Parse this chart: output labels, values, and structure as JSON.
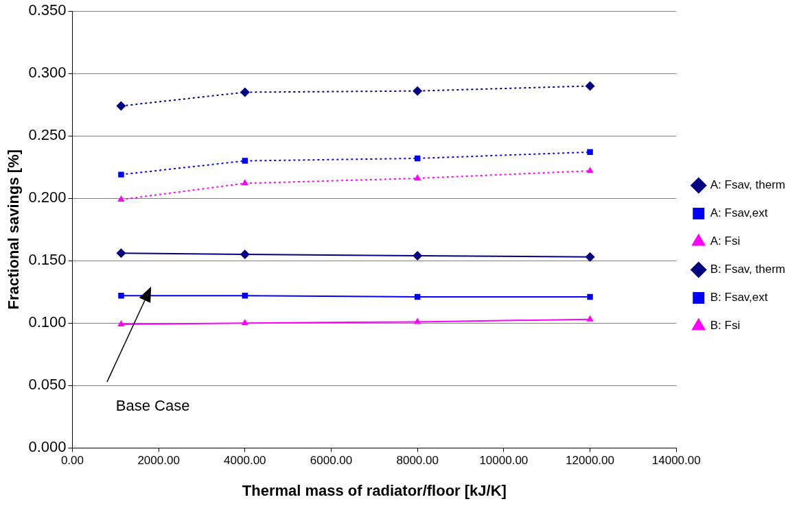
{
  "chart_data": {
    "type": "line",
    "xlabel": "Thermal mass of radiator/floor [kJ/K]",
    "ylabel": "Fractional savings [%]",
    "x": [
      1130,
      4000,
      8000,
      12000
    ],
    "series": [
      {
        "name": "A: Fsav, therm",
        "color": "#000080",
        "values": [
          0.156,
          0.155,
          0.154,
          0.153
        ],
        "marker": "diamond",
        "line_style": "solid"
      },
      {
        "name": "A: Fsav,ext",
        "color": "#0000ff",
        "values": [
          0.122,
          0.122,
          0.121,
          0.121
        ],
        "marker": "square",
        "line_style": "solid"
      },
      {
        "name": "A: Fsi",
        "color": "#ff00ff",
        "values": [
          0.099,
          0.1,
          0.101,
          0.103
        ],
        "marker": "triangle",
        "line_style": "solid"
      },
      {
        "name": "B: Fsav, therm",
        "color": "#000080",
        "values": [
          0.274,
          0.285,
          0.286,
          0.29
        ],
        "marker": "diamond",
        "line_style": "dotted"
      },
      {
        "name": "B: Fsav,ext",
        "color": "#0000ff",
        "values": [
          0.219,
          0.23,
          0.232,
          0.237
        ],
        "marker": "square",
        "line_style": "dotted"
      },
      {
        "name": "B: Fsi",
        "color": "#ff00ff",
        "values": [
          0.199,
          0.212,
          0.216,
          0.222
        ],
        "marker": "triangle",
        "line_style": "dotted"
      }
    ],
    "xlim": [
      0,
      14000
    ],
    "xticks": [
      {
        "value": 0,
        "label": "0.00"
      },
      {
        "value": 2000,
        "label": "2000.00"
      },
      {
        "value": 4000,
        "label": "4000.00"
      },
      {
        "value": 6000,
        "label": "6000.00"
      },
      {
        "value": 8000,
        "label": "8000.00"
      },
      {
        "value": 10000,
        "label": "10000.00"
      },
      {
        "value": 12000,
        "label": "12000.00"
      },
      {
        "value": 14000,
        "label": "14000.00"
      }
    ],
    "ylim": [
      0,
      0.35
    ],
    "yticks": [
      {
        "value": 0,
        "label": "0.000"
      },
      {
        "value": 0.05,
        "label": "0.050"
      },
      {
        "value": 0.1,
        "label": "0.100"
      },
      {
        "value": 0.15,
        "label": "0.150"
      },
      {
        "value": 0.2,
        "label": "0.200"
      },
      {
        "value": 0.25,
        "label": "0.250"
      },
      {
        "value": 0.3,
        "label": "0.300"
      },
      {
        "value": 0.35,
        "label": "0.350"
      }
    ],
    "grid": "y",
    "legend": "right",
    "annotations": [
      "Base Case"
    ]
  }
}
